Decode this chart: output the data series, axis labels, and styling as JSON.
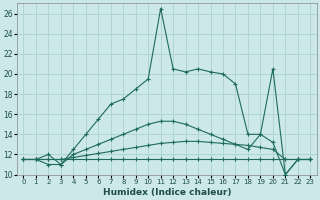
{
  "xlabel": "Humidex (Indice chaleur)",
  "ylabel": "",
  "background_color": "#cce8e8",
  "grid_color": "#b0d4d4",
  "line_color": "#1e6b5e",
  "xlim": [
    -0.5,
    23.5
  ],
  "ylim": [
    10,
    27
  ],
  "yticks": [
    10,
    12,
    14,
    16,
    18,
    20,
    22,
    24,
    26
  ],
  "xticks": [
    0,
    1,
    2,
    3,
    4,
    5,
    6,
    7,
    8,
    9,
    10,
    11,
    12,
    13,
    14,
    15,
    16,
    17,
    18,
    19,
    20,
    21,
    22,
    23
  ],
  "series": [
    [
      11.5,
      11.5,
      11.5,
      11.5,
      11.5,
      11.5,
      11.5,
      11.5,
      11.5,
      11.5,
      11.5,
      11.5,
      11.5,
      11.5,
      11.5,
      11.5,
      11.5,
      11.5,
      11.5,
      11.5,
      11.5,
      11.5,
      11.5,
      11.5
    ],
    [
      11.5,
      11.5,
      11.5,
      11.5,
      11.7,
      11.9,
      12.1,
      12.3,
      12.5,
      12.7,
      12.9,
      13.1,
      13.2,
      13.3,
      13.3,
      13.2,
      13.1,
      13.0,
      12.9,
      12.7,
      12.5,
      11.5,
      11.5,
      11.5
    ],
    [
      11.5,
      11.5,
      11.0,
      11.0,
      12.0,
      12.5,
      13.0,
      13.5,
      14.0,
      14.5,
      15.0,
      15.3,
      15.3,
      15.0,
      14.5,
      14.0,
      13.5,
      13.0,
      12.5,
      14.0,
      13.2,
      10.0,
      11.5,
      11.5
    ],
    [
      11.5,
      11.5,
      12.0,
      11.0,
      12.5,
      14.0,
      15.5,
      17.0,
      17.5,
      18.5,
      19.5,
      26.5,
      20.5,
      20.2,
      20.5,
      20.2,
      20.0,
      19.0,
      14.0,
      14.0,
      20.5,
      10.0,
      11.5,
      11.5
    ]
  ]
}
